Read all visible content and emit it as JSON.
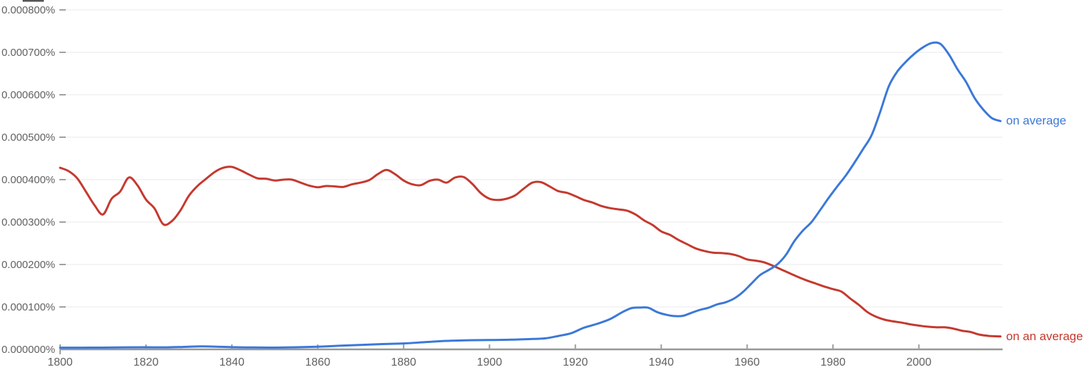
{
  "chart_data": {
    "type": "line",
    "title": "",
    "xlabel": "",
    "ylabel": "",
    "xlim": [
      1800,
      2019
    ],
    "ylim_percent": [
      0,
      0.0008
    ],
    "grid": true,
    "legend_position": "line-end-labels",
    "x_axis": {
      "ticks": [
        1800,
        1820,
        1840,
        1860,
        1880,
        1900,
        1920,
        1940,
        1960,
        1980,
        2000
      ]
    },
    "y_axis": {
      "tick_labels": [
        "0.000000%",
        "0.000100%",
        "0.000200%",
        "0.000300%",
        "0.000400%",
        "0.000500%",
        "0.000600%",
        "0.000700%",
        "0.000800%"
      ]
    },
    "colors": {
      "axis": "#979797",
      "tick": "#9e9e9e",
      "label_text": "#616161",
      "gridline": "#f0f0f0"
    },
    "series": [
      {
        "name": "on average",
        "color": "#3b78d8",
        "x": [
          1800,
          1805,
          1810,
          1815,
          1820,
          1825,
          1830,
          1833,
          1836,
          1840,
          1845,
          1850,
          1855,
          1860,
          1865,
          1870,
          1875,
          1880,
          1885,
          1890,
          1895,
          1900,
          1905,
          1910,
          1913,
          1916,
          1919,
          1922,
          1925,
          1928,
          1931,
          1933,
          1935,
          1937,
          1939,
          1941,
          1943,
          1945,
          1947,
          1949,
          1951,
          1953,
          1955,
          1957,
          1959,
          1961,
          1963,
          1965,
          1967,
          1969,
          1971,
          1973,
          1975,
          1977,
          1979,
          1981,
          1983,
          1985,
          1987,
          1989,
          1991,
          1993,
          1995,
          1997,
          1999,
          2001,
          2003,
          2005,
          2007,
          2009,
          2011,
          2013,
          2015,
          2017,
          2019
        ],
        "values_percent": [
          4e-06,
          4e-06,
          4.2e-06,
          4.8e-06,
          5e-06,
          4.8e-06,
          6.2e-06,
          7e-06,
          6.5e-06,
          5.2e-06,
          4.5e-06,
          4.2e-06,
          5e-06,
          6.2e-06,
          8.5e-06,
          1.05e-05,
          1.25e-05,
          1.4e-05,
          1.7e-05,
          2e-05,
          2.15e-05,
          2.2e-05,
          2.28e-05,
          2.45e-05,
          2.6e-05,
          3.15e-05,
          3.8e-05,
          5.1e-05,
          6e-05,
          7.1e-05,
          8.8e-05,
          9.7e-05,
          9.85e-05,
          9.8e-05,
          8.8e-05,
          8.2e-05,
          7.85e-05,
          7.9e-05,
          8.6e-05,
          9.3e-05,
          9.8e-05,
          0.000106,
          0.000111,
          0.00012,
          0.000135,
          0.000155,
          0.000175,
          0.000187,
          0.0002,
          0.000222,
          0.000255,
          0.00028,
          0.0003,
          0.000328,
          0.000357,
          0.000384,
          0.00041,
          0.00044,
          0.000472,
          0.000505,
          0.00056,
          0.00062,
          0.000655,
          0.000678,
          0.000697,
          0.000712,
          0.000722,
          0.00072,
          0.000695,
          0.00066,
          0.00063,
          0.000592,
          0.000565,
          0.000545,
          0.000538
        ]
      },
      {
        "name": "on an average",
        "color": "#c5392e",
        "x": [
          1800,
          1802,
          1804,
          1806,
          1808,
          1810,
          1812,
          1814,
          1816,
          1818,
          1820,
          1822,
          1824,
          1826,
          1828,
          1830,
          1832,
          1834,
          1836,
          1838,
          1840,
          1842,
          1844,
          1846,
          1848,
          1850,
          1852,
          1854,
          1856,
          1858,
          1860,
          1862,
          1864,
          1866,
          1868,
          1870,
          1872,
          1874,
          1876,
          1878,
          1880,
          1882,
          1884,
          1886,
          1888,
          1890,
          1892,
          1894,
          1896,
          1898,
          1900,
          1902,
          1904,
          1906,
          1908,
          1910,
          1912,
          1914,
          1916,
          1918,
          1920,
          1922,
          1924,
          1926,
          1928,
          1930,
          1932,
          1934,
          1936,
          1938,
          1940,
          1942,
          1944,
          1946,
          1948,
          1950,
          1952,
          1954,
          1956,
          1958,
          1960,
          1962,
          1964,
          1966,
          1968,
          1970,
          1972,
          1974,
          1976,
          1978,
          1980,
          1982,
          1984,
          1986,
          1988,
          1990,
          1992,
          1994,
          1996,
          1998,
          2000,
          2002,
          2004,
          2006,
          2008,
          2010,
          2012,
          2014,
          2016,
          2019
        ],
        "values_percent": [
          0.000428,
          0.00042,
          0.000403,
          0.000372,
          0.00034,
          0.000318,
          0.000355,
          0.000372,
          0.000405,
          0.000387,
          0.000353,
          0.000332,
          0.000295,
          0.000302,
          0.000327,
          0.000362,
          0.000385,
          0.000402,
          0.000418,
          0.000428,
          0.00043,
          0.000422,
          0.000412,
          0.000403,
          0.000402,
          0.000398,
          0.0004,
          0.0004,
          0.000393,
          0.000386,
          0.000382,
          0.000385,
          0.000384,
          0.000383,
          0.000389,
          0.000393,
          0.000399,
          0.000413,
          0.000423,
          0.000413,
          0.000398,
          0.000389,
          0.000387,
          0.000397,
          0.0004,
          0.000393,
          0.000405,
          0.000406,
          0.00039,
          0.000368,
          0.000355,
          0.000352,
          0.000355,
          0.000363,
          0.000379,
          0.000393,
          0.000394,
          0.000384,
          0.000373,
          0.000369,
          0.000361,
          0.000352,
          0.000346,
          0.000338,
          0.000333,
          0.00033,
          0.000327,
          0.000318,
          0.000304,
          0.000293,
          0.000278,
          0.00027,
          0.000258,
          0.000248,
          0.000238,
          0.000232,
          0.000228,
          0.000227,
          0.000225,
          0.00022,
          0.000212,
          0.000209,
          0.000205,
          0.000197,
          0.000188,
          0.000179,
          0.00017,
          0.000162,
          0.000155,
          0.000148,
          0.000142,
          0.000136,
          0.00012,
          0.000105,
          8.8e-05,
          7.7e-05,
          7e-05,
          6.6e-05,
          6.3e-05,
          5.9e-05,
          5.6e-05,
          5.35e-05,
          5.2e-05,
          5.2e-05,
          4.9e-05,
          4.4e-05,
          4.1e-05,
          3.5e-05,
          3.2e-05,
          3.05e-05
        ]
      }
    ]
  }
}
